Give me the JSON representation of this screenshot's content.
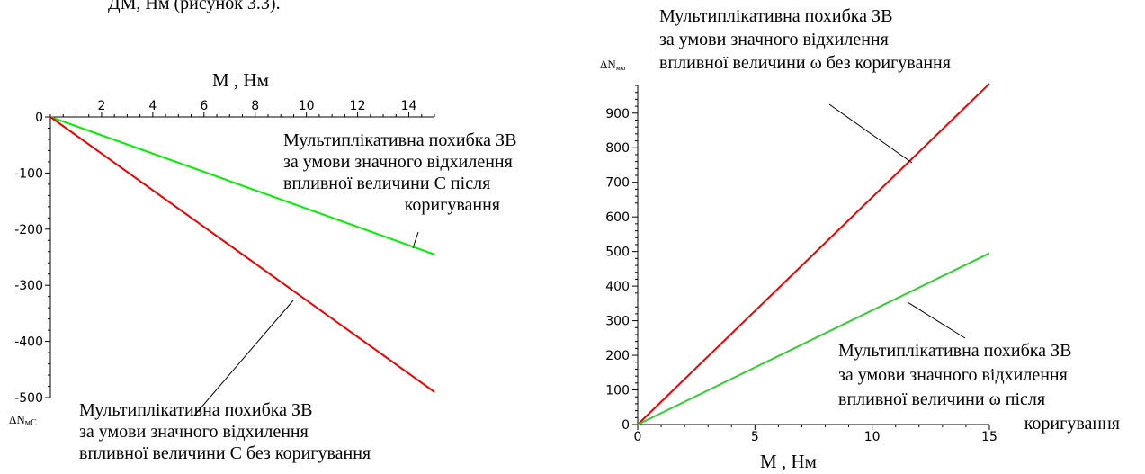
{
  "top_fragment": "ДМ, Нм (рисунок 3.3).",
  "chart_data": [
    {
      "type": "line",
      "xlabel": "M , Нм",
      "ylabel_prefix": "ΔN",
      "ylabel_sub": "мС",
      "xlim": [
        0,
        15
      ],
      "ylim": [
        -500,
        0
      ],
      "xticks": [
        2,
        4,
        6,
        8,
        10,
        12,
        14
      ],
      "yticks": [
        0,
        -100,
        -200,
        -300,
        -400,
        -500
      ],
      "grid": false,
      "series": [
        {
          "color": "#00ee00",
          "x": [
            0,
            15
          ],
          "y": [
            0,
            -245
          ]
        },
        {
          "color": "#ee0000",
          "x": [
            0,
            15
          ],
          "y": [
            0,
            -490
          ]
        }
      ],
      "annotations": [
        {
          "lines": [
            "Мультиплікативна похибка ЗВ",
            "за умови значного відхилення",
            "впливної величини С після",
            "коригування"
          ]
        },
        {
          "lines": [
            "Мультиплікативна похибка ЗВ",
            "за умови значного відхилення",
            "впливної величини С без коригування"
          ]
        }
      ]
    },
    {
      "type": "line",
      "xlabel": "M , Нм",
      "ylabel_prefix": "ΔN",
      "ylabel_sub": "мω",
      "xlim": [
        0,
        15
      ],
      "ylim": [
        0,
        980
      ],
      "xticks": [
        0,
        5,
        10,
        15
      ],
      "yticks": [
        0,
        100,
        200,
        300,
        400,
        500,
        600,
        700,
        800,
        900
      ],
      "grid": false,
      "series": [
        {
          "color": "#ee0000",
          "x": [
            0,
            15
          ],
          "y": [
            0,
            985
          ]
        },
        {
          "color": "#33cc33",
          "x": [
            0,
            15
          ],
          "y": [
            0,
            495
          ]
        }
      ],
      "annotations": [
        {
          "lines": [
            "Мультиплікативна похибка ЗВ",
            "за умови значного відхилення",
            "впливної величини ω без коригування"
          ]
        },
        {
          "lines": [
            "Мультиплікативна похибка ЗВ",
            "за умови значного відхилення",
            "впливної величини ω після",
            "коригування"
          ]
        }
      ]
    }
  ]
}
